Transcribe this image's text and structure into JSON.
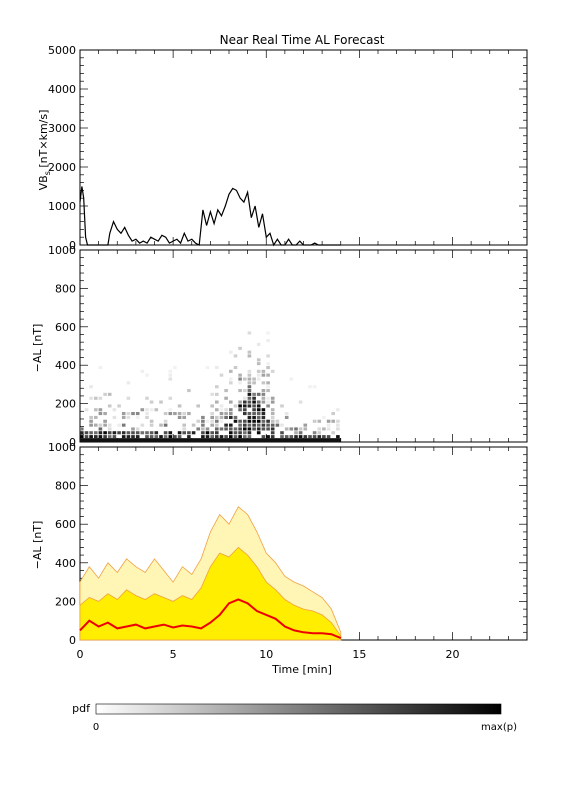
{
  "figure": {
    "title": "Near Real Time AL Forecast"
  },
  "colors": {
    "axes": "#000000",
    "vbs_line": "#000000",
    "envelope_outer": "#fff5b5",
    "envelope_inner": "#ffee00",
    "envelope_lines": "#f0a040",
    "median_line": "#ee0000"
  },
  "chart_data": [
    {
      "type": "line",
      "panel": "vbs",
      "ylabel": "VBs [nT×km/s]",
      "ylabel_main": "VB",
      "ylabel_sub": "s",
      "ylabel_tail": " [nT×km/s]",
      "xlim": [
        0,
        24
      ],
      "ylim": [
        0,
        5000
      ],
      "yticks": [
        0,
        1000,
        2000,
        3000,
        4000,
        5000
      ],
      "yticklabels": [
        "0",
        "1000",
        "2000",
        "3000",
        "4000",
        "5000"
      ],
      "series": [
        {
          "x": [
            0,
            0.1,
            0.2,
            0.3,
            0.4,
            1.5,
            1.6,
            1.8,
            2.0,
            2.2,
            2.4,
            2.6,
            2.8,
            3.0,
            3.2,
            3.4,
            3.6,
            3.8,
            4.0,
            4.2,
            4.4,
            4.6,
            4.8,
            5.0,
            5.2,
            5.4,
            5.6,
            5.8,
            6.0,
            6.2,
            6.4,
            6.6,
            6.8,
            7.0,
            7.2,
            7.4,
            7.6,
            7.8,
            8.0,
            8.2,
            8.4,
            8.6,
            8.8,
            9.0,
            9.2,
            9.4,
            9.6,
            9.8,
            10.0,
            10.2,
            10.4,
            10.6,
            10.8,
            11.0,
            11.2,
            11.4,
            11.6,
            11.8,
            12.0,
            12.2,
            12.4,
            12.6,
            12.8,
            13.0,
            13.4,
            13.8,
            14.0
          ],
          "y": [
            1100,
            1500,
            1200,
            200,
            0,
            0,
            300,
            600,
            400,
            300,
            450,
            250,
            100,
            150,
            50,
            100,
            50,
            200,
            150,
            100,
            250,
            200,
            50,
            100,
            150,
            50,
            300,
            100,
            150,
            50,
            0,
            900,
            500,
            850,
            550,
            900,
            750,
            1000,
            1300,
            1450,
            1400,
            1200,
            1100,
            1350,
            700,
            1000,
            450,
            800,
            200,
            300,
            0,
            150,
            0,
            0,
            150,
            0,
            0,
            100,
            0,
            0,
            0,
            50,
            0,
            0,
            0,
            0,
            0
          ]
        }
      ]
    },
    {
      "type": "heatmap",
      "panel": "pdf",
      "ylabel": "−AL [nT]",
      "xlim": [
        0,
        24
      ],
      "ylim": [
        0,
        1000
      ],
      "yticks": [
        0,
        200,
        400,
        600,
        800,
        1000
      ],
      "yticklabels": [
        "0",
        "200",
        "400",
        "600",
        "800",
        "1000"
      ],
      "x_start": 0,
      "x_end": 14,
      "x_step": 0.25,
      "y_step": 20,
      "high_ridge": {
        "x": [
          0,
          1,
          2,
          3,
          4,
          5,
          6,
          7,
          7.5,
          8,
          8.5,
          9,
          9.5,
          10,
          10.5,
          11,
          12,
          13,
          14
        ],
        "y": [
          200,
          300,
          250,
          280,
          230,
          270,
          250,
          320,
          340,
          500,
          560,
          600,
          520,
          450,
          250,
          250,
          200,
          150,
          100
        ]
      },
      "dense_core": {
        "x": [
          0,
          2,
          4,
          6,
          7,
          7.5,
          8,
          8.5,
          9,
          9.5,
          10,
          10.5,
          11,
          12,
          13,
          14
        ],
        "y": [
          40,
          40,
          40,
          40,
          50,
          60,
          120,
          180,
          250,
          200,
          120,
          50,
          40,
          30,
          30,
          20
        ]
      }
    },
    {
      "type": "area",
      "panel": "forecast",
      "ylabel": "−AL [nT]",
      "xlabel": "Time [min]",
      "xlim": [
        0,
        24
      ],
      "ylim": [
        0,
        1000
      ],
      "yticks": [
        0,
        200,
        400,
        600,
        800,
        1000
      ],
      "yticklabels": [
        "0",
        "200",
        "400",
        "600",
        "800",
        "1000"
      ],
      "xticks": [
        0,
        5,
        10,
        15,
        20
      ],
      "xticklabels": [
        "0",
        "5",
        "10",
        "15",
        "20"
      ],
      "x": [
        0,
        0.5,
        1,
        1.5,
        2,
        2.5,
        3,
        3.5,
        4,
        4.5,
        5,
        5.5,
        6,
        6.5,
        7,
        7.5,
        8,
        8.5,
        9,
        9.5,
        10,
        10.5,
        11,
        11.5,
        12,
        12.5,
        13,
        13.5,
        14
      ],
      "upper": [
        300,
        380,
        320,
        400,
        350,
        420,
        380,
        350,
        420,
        360,
        300,
        380,
        340,
        420,
        560,
        650,
        600,
        690,
        650,
        560,
        450,
        400,
        330,
        300,
        280,
        250,
        220,
        160,
        40
      ],
      "mid": [
        180,
        220,
        200,
        240,
        210,
        260,
        230,
        210,
        240,
        220,
        200,
        230,
        210,
        270,
        380,
        450,
        430,
        480,
        440,
        380,
        300,
        260,
        210,
        180,
        160,
        150,
        130,
        90,
        20
      ],
      "median": [
        50,
        100,
        70,
        90,
        60,
        70,
        80,
        60,
        70,
        80,
        65,
        75,
        70,
        60,
        90,
        130,
        190,
        210,
        190,
        150,
        130,
        110,
        70,
        50,
        40,
        35,
        35,
        30,
        10
      ]
    }
  ],
  "colorbar": {
    "label": "pdf",
    "min_label": "0",
    "max_label": "max(p)"
  }
}
